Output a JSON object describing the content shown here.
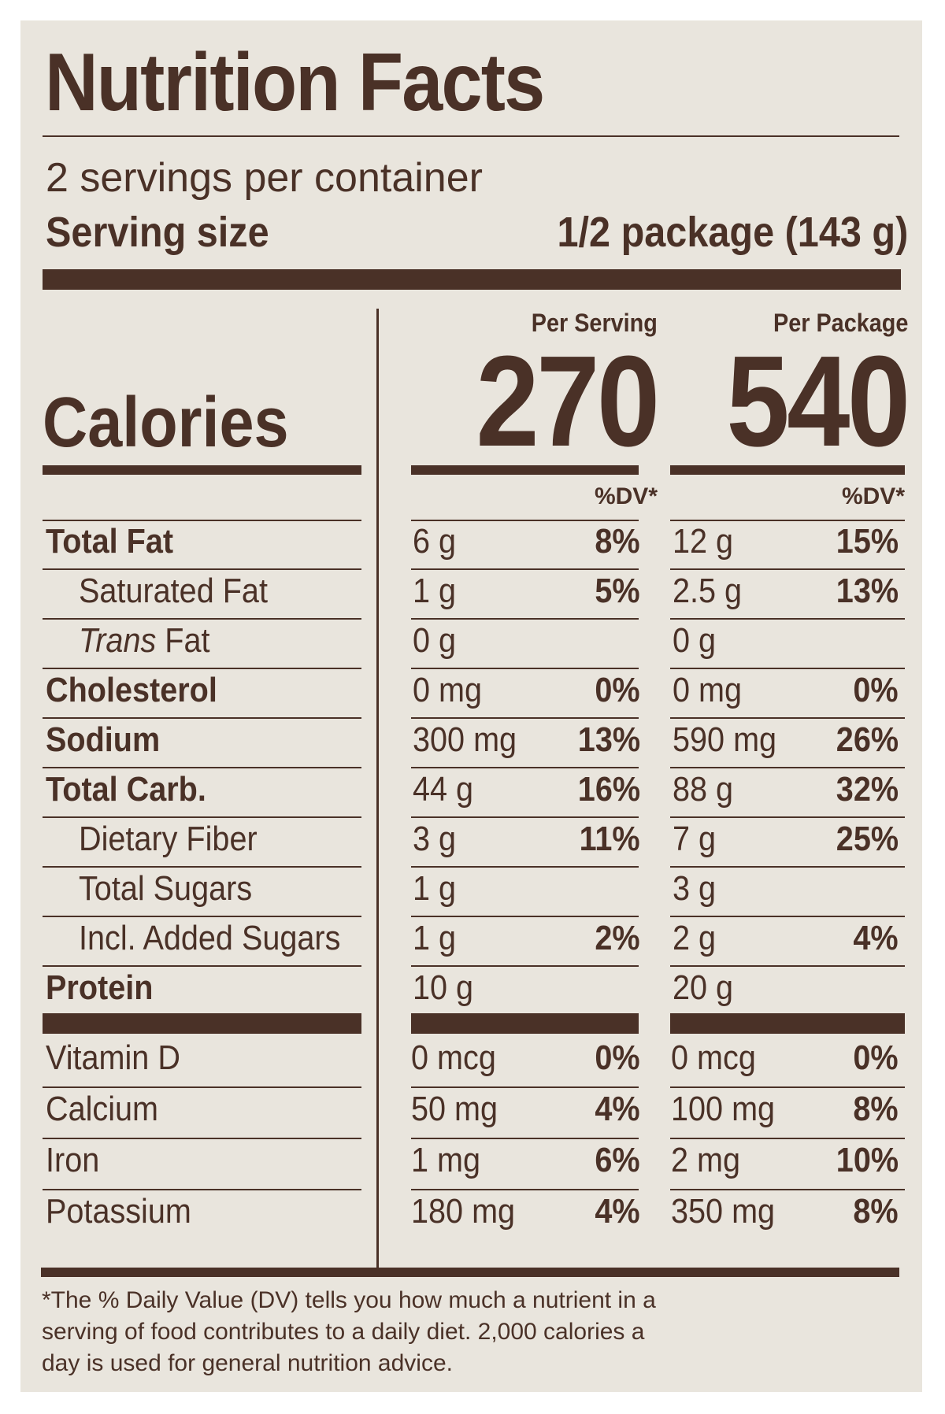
{
  "title": "Nutrition Facts",
  "servings_per_container": "2 servings per container",
  "serving_size_label": "Serving size",
  "serving_size_value": "1/2 package (143 g)",
  "columns": {
    "per_serving": "Per Serving",
    "per_package": "Per Package"
  },
  "calories": {
    "label": "Calories",
    "per_serving": "270",
    "per_package": "540"
  },
  "dv_header": "%DV*",
  "nutrients": [
    {
      "name": "Total Fat",
      "serving_amount": "6 g",
      "serving_dv": "8%",
      "package_amount": "12 g",
      "package_dv": "15%"
    },
    {
      "name": "Saturated Fat",
      "serving_amount": "1 g",
      "serving_dv": "5%",
      "package_amount": "2.5 g",
      "package_dv": "13%"
    },
    {
      "name_italic": "Trans",
      "name_rest": " Fat",
      "serving_amount": "0 g",
      "serving_dv": "",
      "package_amount": "0 g",
      "package_dv": ""
    },
    {
      "name": "Cholesterol",
      "serving_amount": "0 mg",
      "serving_dv": "0%",
      "package_amount": "0 mg",
      "package_dv": "0%"
    },
    {
      "name": "Sodium",
      "serving_amount": "300 mg",
      "serving_dv": "13%",
      "package_amount": "590 mg",
      "package_dv": "26%"
    },
    {
      "name": "Total Carb.",
      "serving_amount": "44 g",
      "serving_dv": "16%",
      "package_amount": "88 g",
      "package_dv": "32%"
    },
    {
      "name": "Dietary Fiber",
      "serving_amount": "3 g",
      "serving_dv": "11%",
      "package_amount": "7 g",
      "package_dv": "25%"
    },
    {
      "name": "Total Sugars",
      "serving_amount": "1 g",
      "serving_dv": "",
      "package_amount": "3 g",
      "package_dv": ""
    },
    {
      "name": "Incl. Added Sugars",
      "serving_amount": "1 g",
      "serving_dv": "2%",
      "package_amount": "2 g",
      "package_dv": "4%"
    },
    {
      "name": "Protein",
      "serving_amount": "10 g",
      "serving_dv": "",
      "package_amount": "20 g",
      "package_dv": ""
    }
  ],
  "vitamins": [
    {
      "name": "Vitamin D",
      "serving_amount": "0 mcg",
      "serving_dv": "0%",
      "package_amount": "0 mcg",
      "package_dv": "0%"
    },
    {
      "name": "Calcium",
      "serving_amount": "50 mg",
      "serving_dv": "4%",
      "package_amount": "100 mg",
      "package_dv": "8%"
    },
    {
      "name": "Iron",
      "serving_amount": "1 mg",
      "serving_dv": "6%",
      "package_amount": "2 mg",
      "package_dv": "10%"
    },
    {
      "name": "Potassium",
      "serving_amount": "180 mg",
      "serving_dv": "4%",
      "package_amount": "350 mg",
      "package_dv": "8%"
    }
  ],
  "footnote": "*The % Daily Value (DV) tells you how much a nutrient in a serving of food contributes to a daily diet. 2,000 calories a day is used for general nutrition advice.",
  "colors": {
    "ink": "#4a3127",
    "background": "#e9e5dd"
  }
}
